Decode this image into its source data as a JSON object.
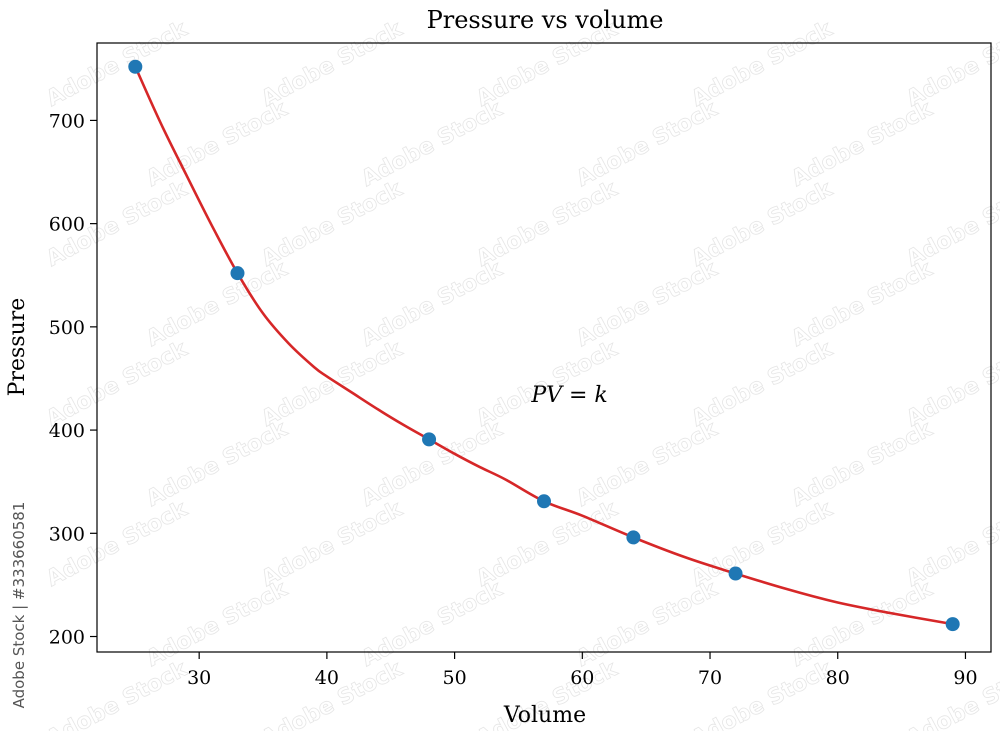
{
  "chart_data": {
    "type": "scatter",
    "title": "Pressure vs volume",
    "xlabel": "Volume",
    "ylabel": "Pressure",
    "xlim": [
      22,
      92
    ],
    "ylim": [
      185,
      775
    ],
    "xticks": [
      30,
      40,
      50,
      60,
      70,
      80,
      90
    ],
    "yticks": [
      200,
      300,
      400,
      500,
      600,
      700
    ],
    "grid": false,
    "points": {
      "x": [
        25,
        33,
        48,
        57,
        64,
        72,
        89
      ],
      "y": [
        752,
        552,
        391,
        331,
        296,
        261,
        212
      ],
      "color": "#1f77b4"
    },
    "fit_curve": {
      "color": "#d62728",
      "x": [
        25,
        27,
        29,
        31,
        33,
        35,
        37,
        39,
        40,
        42,
        44,
        46,
        48,
        50,
        52,
        54,
        57,
        60,
        64,
        68,
        72,
        76,
        80,
        84,
        89
      ],
      "y": [
        752,
        697,
        647,
        598,
        552,
        513,
        484,
        461,
        452,
        436,
        420,
        405,
        391,
        377,
        364,
        352,
        331,
        317,
        296,
        277,
        261,
        246,
        233,
        223,
        212
      ]
    },
    "annotation": {
      "text": "PV = k",
      "x": 59,
      "y": 435
    }
  },
  "watermark": {
    "side_text": "Adobe Stock | #333660581",
    "tile_text": "Adobe Stock"
  }
}
